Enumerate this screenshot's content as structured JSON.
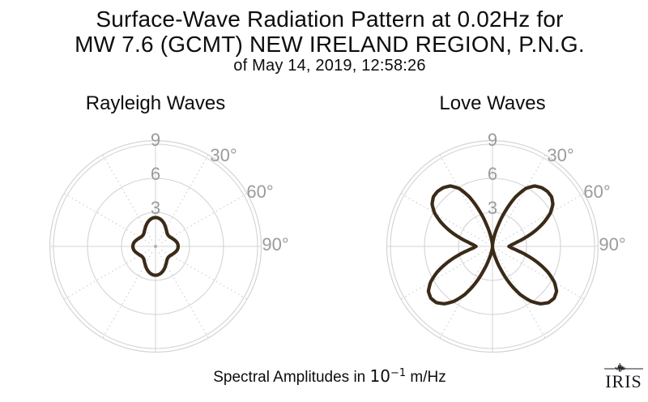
{
  "title": {
    "line1": "Surface-Wave Radiation Pattern at 0.02Hz for",
    "line2": "MW 7.6 (GCMT) NEW IRELAND REGION, P.N.G.",
    "line3": "of May 14, 2019, 12:58:26"
  },
  "footer": {
    "prefix": "Spectral Amplitudes in",
    "base": "10",
    "exponent": "−1",
    "unit": "m/Hz"
  },
  "logo": {
    "text": "IRIS",
    "icon": "seismogram-icon"
  },
  "colors": {
    "curve": "#3b2a18",
    "grid": "#d4d4d4",
    "labels": "#9b9b9b",
    "text": "#0d0d0d",
    "center_dot": "#aaaaaa"
  },
  "chart_data": [
    {
      "type": "polar-line",
      "title": "Rayleigh Waves",
      "r_ticks": [
        3,
        6,
        9
      ],
      "r_max": 9.3,
      "amplitude_units": "10^-1 m/Hz",
      "angle_tick_labels": [
        "30°",
        "60°",
        "90°"
      ],
      "angle_ticks_deg": [
        30,
        60,
        90
      ],
      "azimuth_step_deg": 5,
      "symmetry": "profiles sampled 0-90deg from vertical axis, mirrored east-west",
      "amplitude_north": [
        2.55,
        2.52,
        2.44,
        2.32,
        2.17,
        2.0,
        1.83,
        1.69,
        1.57,
        1.5,
        1.48,
        1.5,
        1.56,
        1.64,
        1.74,
        1.84,
        1.93,
        1.98,
        2.0
      ],
      "amplitude_south": [
        2.55,
        2.52,
        2.44,
        2.32,
        2.17,
        2.0,
        1.83,
        1.69,
        1.57,
        1.5,
        1.48,
        1.5,
        1.56,
        1.64,
        1.74,
        1.84,
        1.93,
        1.98,
        2.0
      ]
    },
    {
      "type": "polar-line",
      "title": "Love Waves",
      "r_ticks": [
        3,
        6,
        9
      ],
      "r_max": 9.3,
      "amplitude_units": "10^-1 m/Hz",
      "angle_tick_labels": [
        "30°",
        "60°",
        "90°"
      ],
      "angle_ticks_deg": [
        30,
        60,
        90
      ],
      "azimuth_step_deg": 5,
      "symmetry": "profiles sampled 0-90deg from vertical axis, mirrored east-west",
      "amplitude_north": [
        0,
        0.3,
        0.9,
        1.9,
        3.3,
        4.8,
        5.9,
        6.5,
        6.75,
        6.85,
        6.8,
        6.5,
        5.9,
        5.0,
        4.0,
        3.0,
        2.2,
        1.7,
        1.45
      ],
      "amplitude_south": [
        0,
        0.15,
        0.45,
        1.1,
        2.2,
        3.6,
        4.9,
        5.9,
        6.6,
        7.0,
        7.1,
        6.9,
        6.3,
        5.4,
        4.3,
        3.2,
        2.3,
        1.7,
        1.45
      ]
    }
  ]
}
